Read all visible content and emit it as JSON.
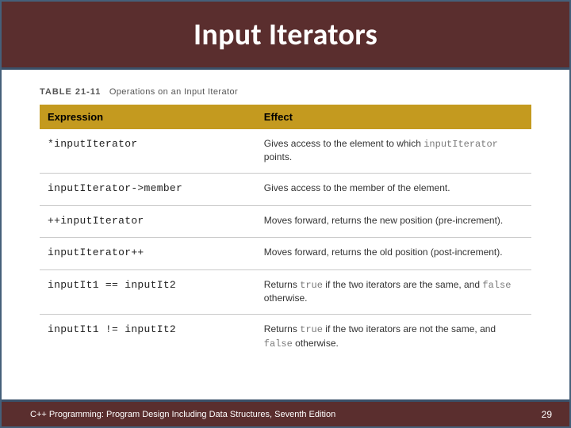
{
  "title": "Input Iterators",
  "caption_label": "TABLE 21-11",
  "caption_text": "Operations on an Input Iterator",
  "columns": {
    "c1": "Expression",
    "c2": "Effect"
  },
  "rows": [
    {
      "expr": "*inputIterator",
      "effect_pre": "Gives access to the element to which ",
      "effect_kw": "inputIterator",
      "effect_post": " points."
    },
    {
      "expr": "inputIterator->member",
      "effect_pre": "Gives access to the member of the element.",
      "effect_kw": "",
      "effect_post": ""
    },
    {
      "expr": "++inputIterator",
      "effect_pre": "Moves forward, returns the new position (pre-increment).",
      "effect_kw": "",
      "effect_post": ""
    },
    {
      "expr": "inputIterator++",
      "effect_pre": "Moves forward, returns the old position (post-increment).",
      "effect_kw": "",
      "effect_post": ""
    },
    {
      "expr": "inputIt1 == inputIt2",
      "effect_pre": "Returns ",
      "effect_kw": "true",
      "effect_mid": " if the two iterators are the same, and ",
      "effect_kw2": "false",
      "effect_post": " otherwise."
    },
    {
      "expr": "inputIt1 != inputIt2",
      "effect_pre": "Returns ",
      "effect_kw": "true",
      "effect_mid": " if the two iterators are not the same, and ",
      "effect_kw2": "false",
      "effect_post": " otherwise."
    }
  ],
  "footer_text": "C++ Programming: Program Design Including Data Structures, Seventh Edition",
  "page_number": "29",
  "colors": {
    "title_bg": "#5a2e2e",
    "th_bg": "#c49a1f",
    "slide_border": "#45607a"
  }
}
